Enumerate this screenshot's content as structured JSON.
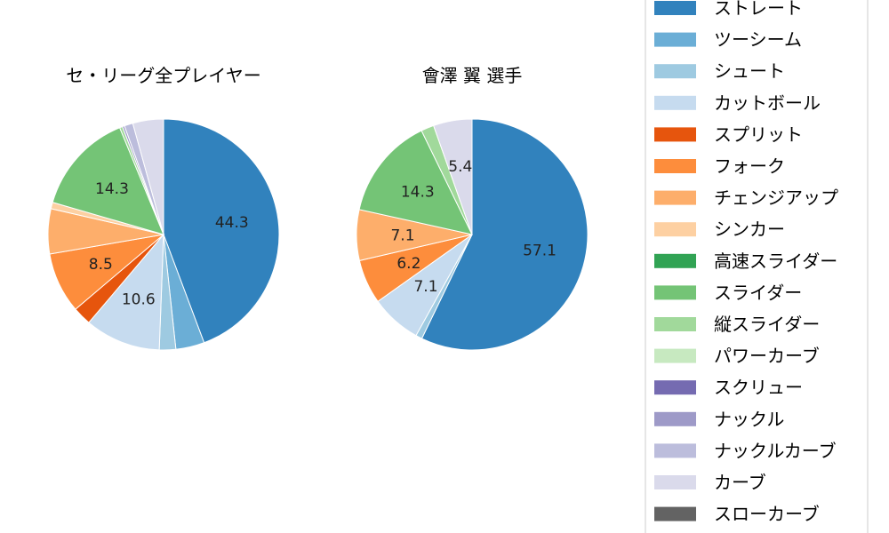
{
  "chart_data": [
    {
      "type": "pie",
      "title": "セ・リーグ全プレイヤー",
      "slices": [
        {
          "label": "ストレート",
          "value": 44.3,
          "color": "#3182bd",
          "shown": "44.3"
        },
        {
          "label": "ツーシーム",
          "value": 4.0,
          "color": "#6baed6",
          "shown": ""
        },
        {
          "label": "シュート",
          "value": 2.3,
          "color": "#9ecae1",
          "shown": ""
        },
        {
          "label": "カットボール",
          "value": 10.6,
          "color": "#c6dbef",
          "shown": "10.6"
        },
        {
          "label": "スプリット",
          "value": 2.6,
          "color": "#e6550d",
          "shown": ""
        },
        {
          "label": "フォーク",
          "value": 8.5,
          "color": "#fd8d3c",
          "shown": "8.5"
        },
        {
          "label": "チェンジアップ",
          "value": 6.3,
          "color": "#fdae6b",
          "shown": ""
        },
        {
          "label": "シンカー",
          "value": 0.9,
          "color": "#fdd0a2",
          "shown": ""
        },
        {
          "label": "高速スライダー",
          "value": 0.0,
          "color": "#31a354",
          "shown": ""
        },
        {
          "label": "スライダー",
          "value": 14.3,
          "color": "#74c476",
          "shown": "14.3"
        },
        {
          "label": "縦スライダー",
          "value": 0.4,
          "color": "#a1d99b",
          "shown": ""
        },
        {
          "label": "パワーカーブ",
          "value": 0.0,
          "color": "#c7e9c0",
          "shown": ""
        },
        {
          "label": "スクリュー",
          "value": 0.0,
          "color": "#756bb1",
          "shown": ""
        },
        {
          "label": "ナックル",
          "value": 0.3,
          "color": "#9e9ac8",
          "shown": ""
        },
        {
          "label": "ナックルカーブ",
          "value": 1.2,
          "color": "#bcbddc",
          "shown": ""
        },
        {
          "label": "カーブ",
          "value": 4.3,
          "color": "#dadaeb",
          "shown": ""
        },
        {
          "label": "スローカーブ",
          "value": 0.0,
          "color": "#636363",
          "shown": ""
        }
      ]
    },
    {
      "type": "pie",
      "title": "會澤 翼  選手",
      "slices": [
        {
          "label": "ストレート",
          "value": 57.1,
          "color": "#3182bd",
          "shown": "57.1"
        },
        {
          "label": "シュート",
          "value": 0.9,
          "color": "#9ecae1",
          "shown": ""
        },
        {
          "label": "カットボール",
          "value": 7.1,
          "color": "#c6dbef",
          "shown": "7.1"
        },
        {
          "label": "フォーク",
          "value": 6.2,
          "color": "#fd8d3c",
          "shown": "6.2"
        },
        {
          "label": "チェンジアップ",
          "value": 7.1,
          "color": "#fdae6b",
          "shown": "7.1"
        },
        {
          "label": "スライダー",
          "value": 14.3,
          "color": "#74c476",
          "shown": "14.3"
        },
        {
          "label": "縦スライダー",
          "value": 1.8,
          "color": "#a1d99b",
          "shown": ""
        },
        {
          "label": "カーブ",
          "value": 5.4,
          "color": "#dadaeb",
          "shown": "5.4"
        }
      ]
    }
  ],
  "legend": {
    "position": "right",
    "entries": [
      {
        "label": "ストレート",
        "color": "#3182bd"
      },
      {
        "label": "ツーシーム",
        "color": "#6baed6"
      },
      {
        "label": "シュート",
        "color": "#9ecae1"
      },
      {
        "label": "カットボール",
        "color": "#c6dbef"
      },
      {
        "label": "スプリット",
        "color": "#e6550d"
      },
      {
        "label": "フォーク",
        "color": "#fd8d3c"
      },
      {
        "label": "チェンジアップ",
        "color": "#fdae6b"
      },
      {
        "label": "シンカー",
        "color": "#fdd0a2"
      },
      {
        "label": "高速スライダー",
        "color": "#31a354"
      },
      {
        "label": "スライダー",
        "color": "#74c476"
      },
      {
        "label": "縦スライダー",
        "color": "#a1d99b"
      },
      {
        "label": "パワーカーブ",
        "color": "#c7e9c0"
      },
      {
        "label": "スクリュー",
        "color": "#756bb1"
      },
      {
        "label": "ナックル",
        "color": "#9e9ac8"
      },
      {
        "label": "ナックルカーブ",
        "color": "#bcbddc"
      },
      {
        "label": "カーブ",
        "color": "#dadaeb"
      },
      {
        "label": "スローカーブ",
        "color": "#636363"
      }
    ]
  }
}
